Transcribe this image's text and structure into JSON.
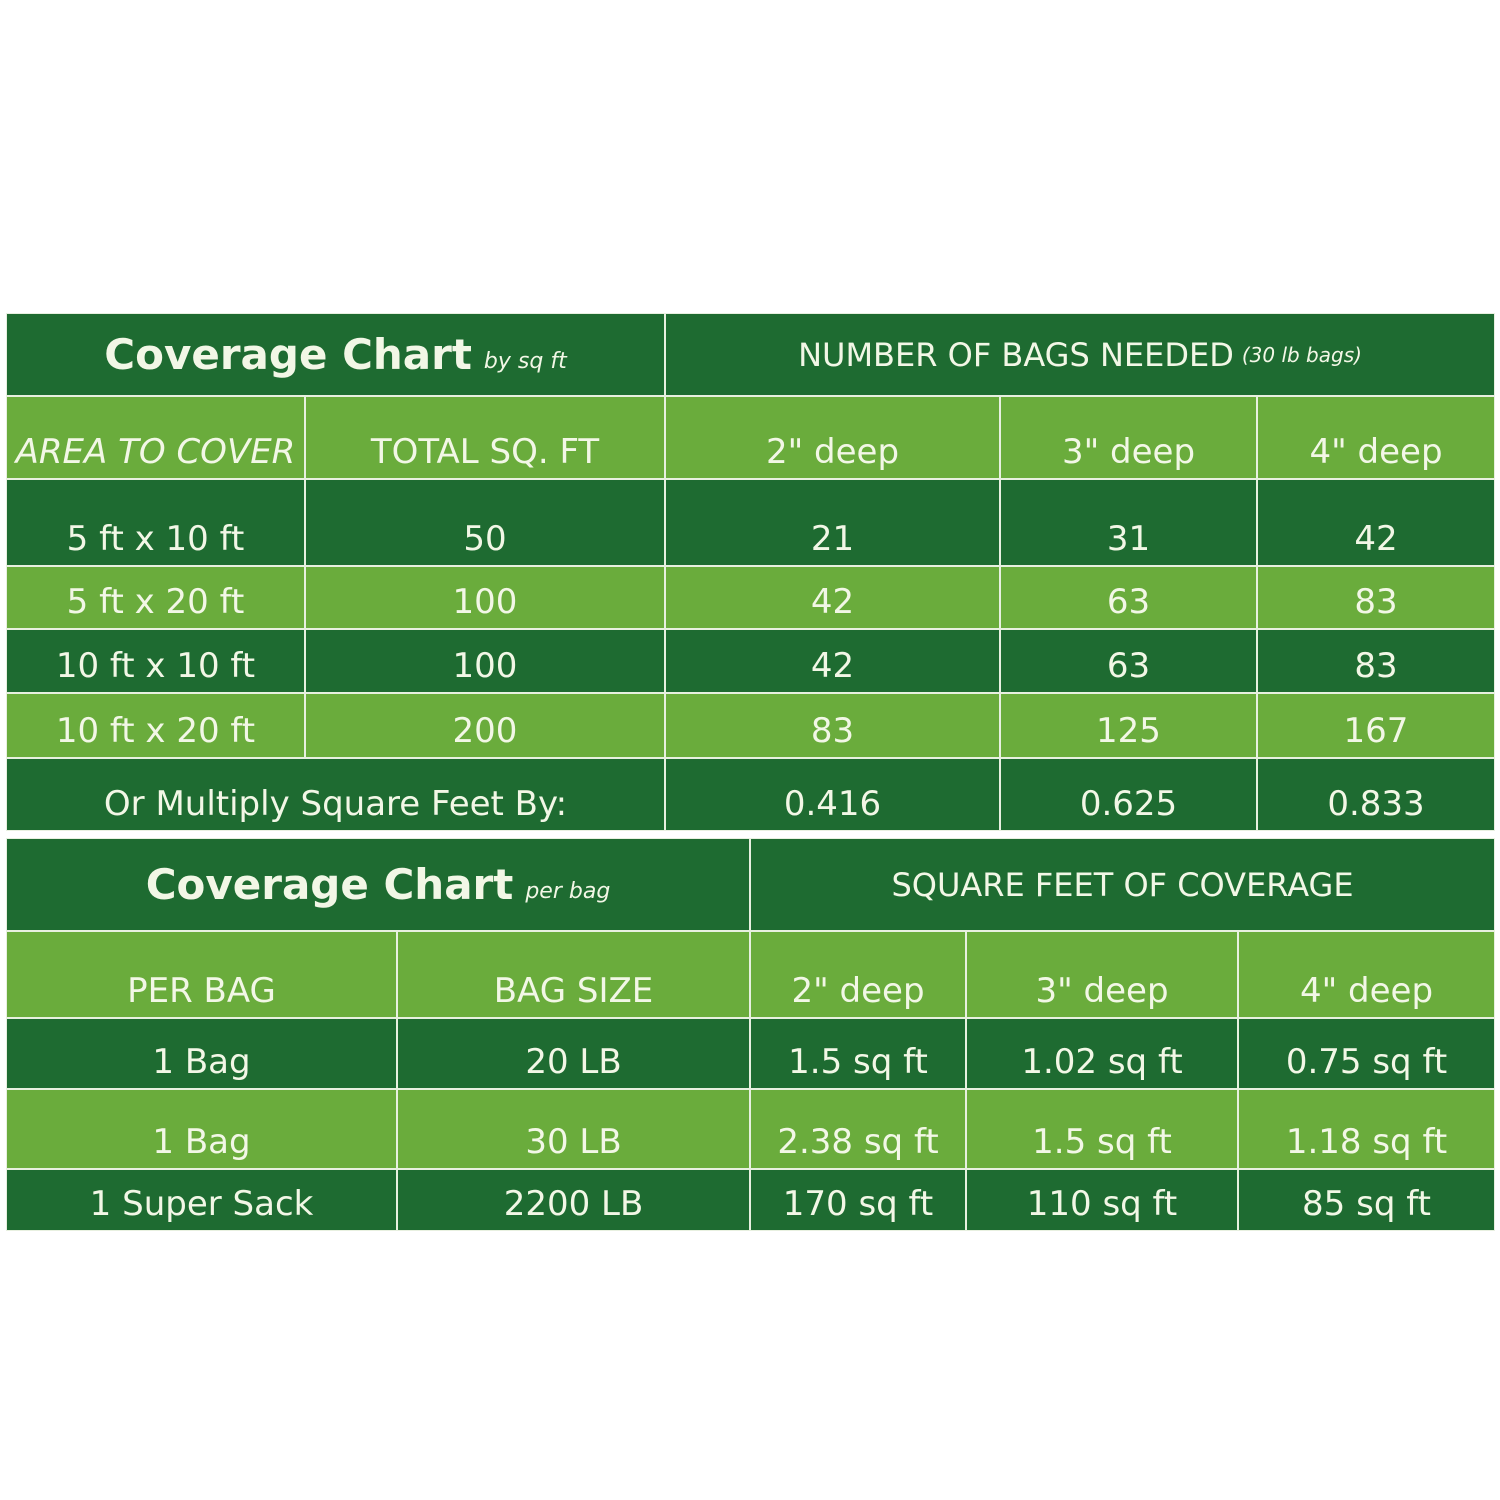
{
  "colors": {
    "dark_green": "#1e6b31",
    "light_green": "#6aac3c",
    "text": "#f2f7e6"
  },
  "table1": {
    "title": "Coverage Chart",
    "title_suffix": "by sq ft",
    "group_header": "NUMBER OF BAGS NEEDED",
    "group_header_suffix": "(30 lb bags)",
    "headers": [
      "AREA TO COVER",
      "TOTAL SQ. FT",
      "2\" deep",
      "3\" deep",
      "4\" deep"
    ],
    "rows": [
      [
        "5 ft x 10 ft",
        "50",
        "21",
        "31",
        "42"
      ],
      [
        "5 ft x 20 ft",
        "100",
        "42",
        "63",
        "83"
      ],
      [
        "10 ft x 10 ft",
        "100",
        "42",
        "63",
        "83"
      ],
      [
        "10 ft x 20 ft",
        "200",
        "83",
        "125",
        "167"
      ]
    ],
    "multiply_label": "Or Multiply Square Feet By:",
    "multipliers": [
      "0.416",
      "0.625",
      "0.833"
    ]
  },
  "table2": {
    "title": "Coverage Chart",
    "title_suffix": "per bag",
    "group_header": "SQUARE FEET OF COVERAGE",
    "headers": [
      "PER BAG",
      "BAG SIZE",
      "2\" deep",
      "3\" deep",
      "4\" deep"
    ],
    "rows": [
      [
        "1 Bag",
        "20 LB",
        "1.5 sq ft",
        "1.02 sq ft",
        "0.75 sq ft"
      ],
      [
        "1 Bag",
        "30 LB",
        "2.38 sq ft",
        "1.5 sq ft",
        "1.18 sq ft"
      ],
      [
        "1 Super Sack",
        "2200 LB",
        "170 sq ft",
        "110 sq ft",
        "85 sq ft"
      ]
    ]
  }
}
